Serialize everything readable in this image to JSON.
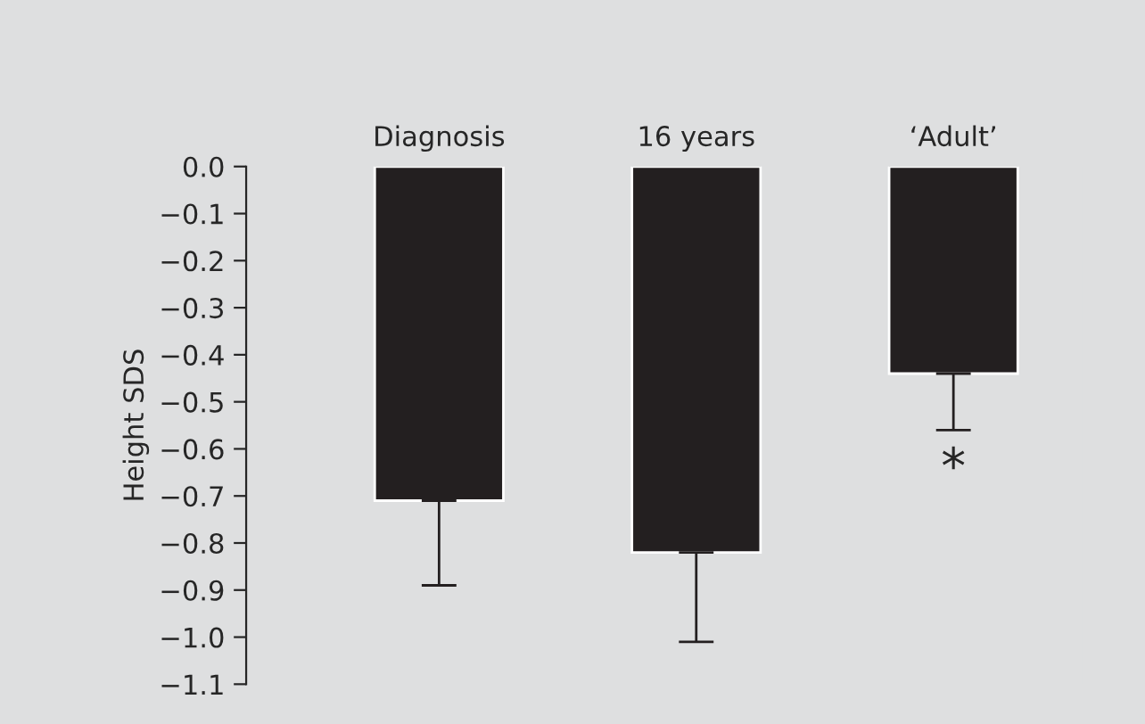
{
  "chart_data": {
    "type": "bar",
    "ylabel": "Height SDS",
    "categories": [
      "Diagnosis",
      "16 years",
      "‘Adult’"
    ],
    "values": [
      -0.71,
      -0.82,
      -0.44
    ],
    "errors": [
      [
        -0.89,
        -0.71
      ],
      [
        -1.01,
        -0.82
      ],
      [
        -0.56,
        -0.44
      ]
    ],
    "color": "#231f20",
    "ylim": [
      -1.1,
      0.0
    ],
    "yticks": [
      {
        "value": 0.0,
        "label": "0.0"
      },
      {
        "value": -0.1,
        "label": "−0.1"
      },
      {
        "value": -0.2,
        "label": "−0.2"
      },
      {
        "value": -0.3,
        "label": "−0.3"
      },
      {
        "value": -0.4,
        "label": "−0.4"
      },
      {
        "value": -0.5,
        "label": "−0.5"
      },
      {
        "value": -0.6,
        "label": "−0.6"
      },
      {
        "value": -0.7,
        "label": "−0.7"
      },
      {
        "value": -0.8,
        "label": "−0.8"
      },
      {
        "value": -0.9,
        "label": "−0.9"
      },
      {
        "value": -1.0,
        "label": "−1.0"
      },
      {
        "value": -1.1,
        "label": "−1.1"
      }
    ],
    "annotations": [
      {
        "text": "*",
        "x": "‘Adult’",
        "y": -0.56
      }
    ],
    "grid": false,
    "legend": false
  }
}
